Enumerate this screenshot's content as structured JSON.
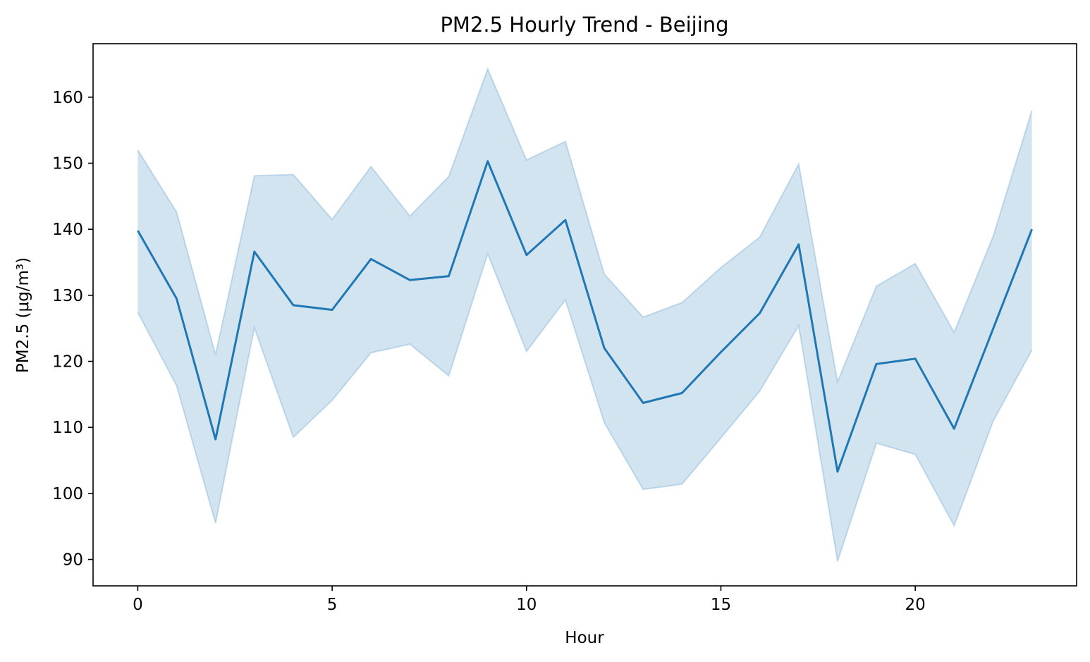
{
  "chart_data": {
    "type": "line",
    "title": "PM2.5 Hourly Trend - Beijing",
    "xlabel": "Hour",
    "ylabel": "PM2.5 (μg/m³)",
    "xlim": [
      -1.15,
      24.15
    ],
    "ylim": [
      86.0,
      168.1
    ],
    "xticks": [
      0,
      5,
      10,
      15,
      20
    ],
    "yticks": [
      90,
      100,
      110,
      120,
      130,
      140,
      150,
      160
    ],
    "grid": false,
    "line_color": "#1f77b4",
    "band_color": "#1f77b4",
    "x": [
      0,
      1,
      2,
      3,
      4,
      5,
      6,
      7,
      8,
      9,
      10,
      11,
      12,
      13,
      14,
      15,
      16,
      17,
      18,
      19,
      20,
      21,
      22,
      23
    ],
    "series": [
      {
        "values": [
          139.8,
          129.5,
          108.2,
          136.6,
          128.5,
          127.8,
          135.5,
          132.3,
          132.9,
          150.3,
          136.1,
          141.4,
          122.0,
          113.7,
          115.2,
          121.4,
          127.3,
          137.7,
          103.3,
          119.6,
          120.4,
          109.8,
          124.9,
          140.0
        ],
        "band_upper": [
          152.0,
          142.6,
          121.0,
          148.1,
          148.3,
          141.5,
          149.5,
          142.0,
          148.0,
          164.3,
          150.5,
          153.3,
          133.2,
          126.7,
          128.9,
          134.2,
          138.8,
          149.9,
          116.9,
          131.4,
          134.8,
          124.4,
          138.9,
          158.0
        ],
        "band_lower": [
          127.4,
          116.3,
          95.5,
          125.1,
          108.5,
          114.1,
          121.3,
          122.6,
          117.8,
          136.3,
          121.5,
          129.3,
          110.7,
          100.6,
          101.4,
          108.4,
          115.5,
          125.4,
          89.7,
          107.6,
          105.9,
          95.1,
          110.9,
          121.7
        ]
      }
    ]
  }
}
